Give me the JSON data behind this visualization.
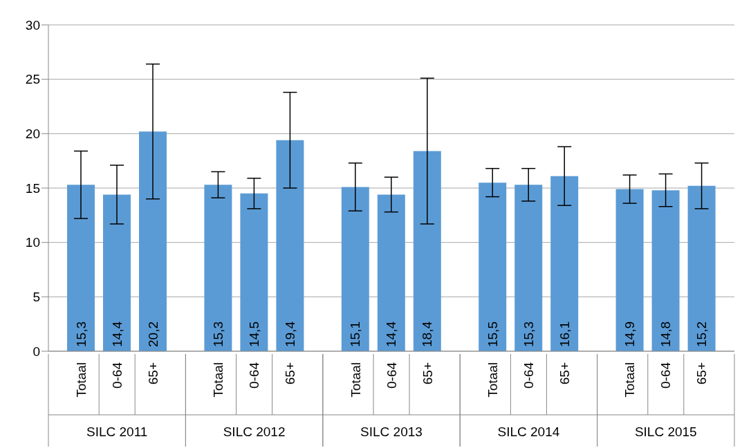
{
  "chart_data": {
    "type": "bar",
    "categories": [
      "SILC 2011",
      "SILC 2012",
      "SILC 2013",
      "SILC 2014",
      "SILC 2015"
    ],
    "series": [
      {
        "name": "Totaal",
        "color": "#5b9bd5",
        "values": [
          15.3,
          15.3,
          15.1,
          15.5,
          14.9
        ],
        "value_labels": [
          "15,3",
          "15,3",
          "15,1",
          "15,5",
          "14,9"
        ],
        "errors": [
          [
            12.2,
            18.4
          ],
          [
            14.1,
            16.5
          ],
          [
            12.9,
            17.3
          ],
          [
            14.2,
            16.8
          ],
          [
            13.6,
            16.2
          ]
        ]
      },
      {
        "name": "0-64",
        "color": "#5b9bd5",
        "values": [
          14.4,
          14.5,
          14.4,
          15.3,
          14.8
        ],
        "value_labels": [
          "14,4",
          "14,5",
          "14,4",
          "15,3",
          "14,8"
        ],
        "errors": [
          [
            11.7,
            17.1
          ],
          [
            13.1,
            15.9
          ],
          [
            12.8,
            16.0
          ],
          [
            13.8,
            16.8
          ],
          [
            13.3,
            16.3
          ]
        ]
      },
      {
        "name": "65+",
        "color": "#5b9bd5",
        "values": [
          20.2,
          19.4,
          18.4,
          16.1,
          15.2
        ],
        "value_labels": [
          "20,2",
          "19,4",
          "18,4",
          "16,1",
          "15,2"
        ],
        "errors": [
          [
            14.0,
            26.4
          ],
          [
            15.0,
            23.8
          ],
          [
            11.7,
            25.1
          ],
          [
            13.4,
            18.8
          ],
          [
            13.1,
            17.3
          ]
        ]
      }
    ],
    "ylim": [
      0,
      30
    ],
    "yticks": [
      0,
      5,
      10,
      15,
      20,
      25,
      30
    ],
    "grid": "y",
    "legend": false
  }
}
